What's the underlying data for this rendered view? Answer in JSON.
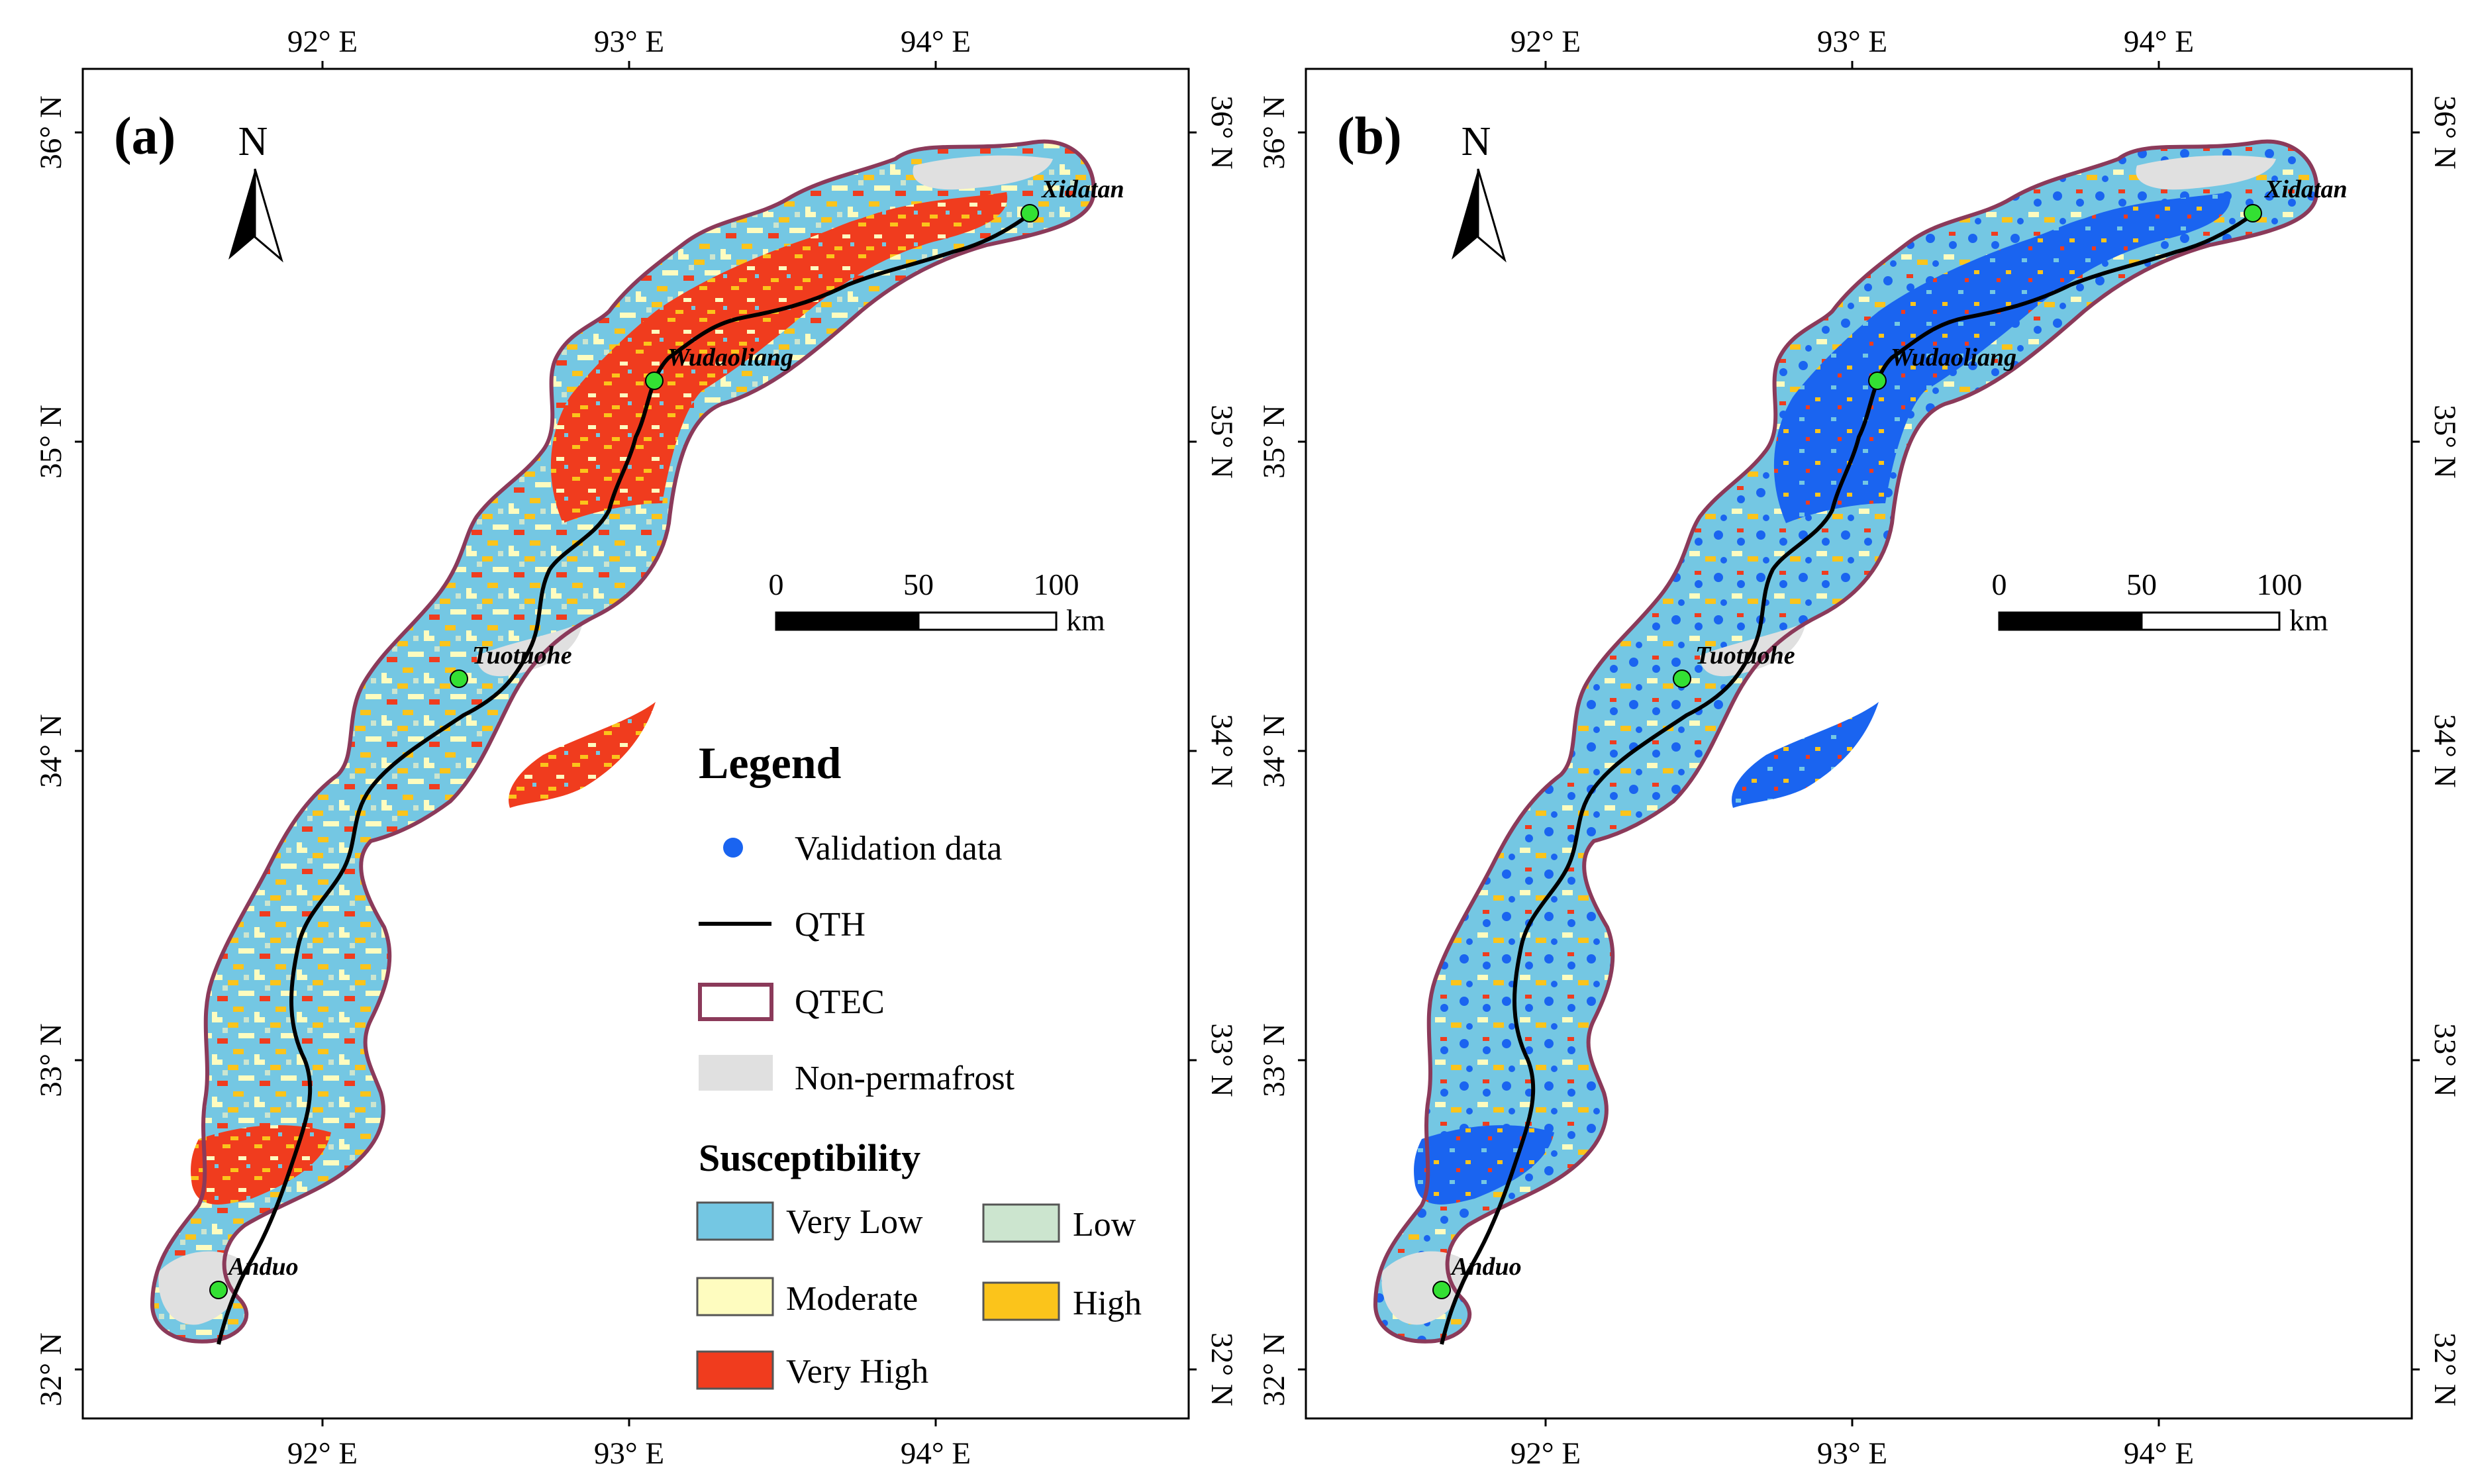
{
  "maps": [
    {
      "id": "a",
      "panel_label": "(a)",
      "lon_ticks": [
        "92° E",
        "93° E",
        "94° E"
      ],
      "lat_ticks": [
        "36° N",
        "35° N",
        "34° N",
        "33° N",
        "32° N"
      ],
      "north_arrow_label": "N",
      "scale_bar": {
        "labels": [
          "0",
          "50",
          "100"
        ],
        "unit": "km"
      },
      "cities": [
        "Xidatan",
        "Wudaoliang",
        "Tuotuohe",
        "Anduo"
      ]
    },
    {
      "id": "b",
      "panel_label": "(b)",
      "lon_ticks": [
        "92° E",
        "93° E",
        "94° E"
      ],
      "lat_ticks": [
        "36° N",
        "35° N",
        "34° N",
        "33° N",
        "32° N"
      ],
      "north_arrow_label": "N",
      "scale_bar": {
        "labels": [
          "0",
          "50",
          "100"
        ],
        "unit": "km"
      },
      "cities": [
        "Xidatan",
        "Wudaoliang",
        "Tuotuohe",
        "Anduo"
      ],
      "overlay": "Validation data"
    }
  ],
  "legend": {
    "title": "Legend",
    "items": [
      {
        "label": "Validation data",
        "symbol": "point",
        "color": "#1a64f0"
      },
      {
        "label": "QTH",
        "symbol": "line",
        "color": "#000000"
      },
      {
        "label": "QTEC",
        "symbol": "outline",
        "color": "#8b3a5a"
      },
      {
        "label": "Non-permafrost",
        "symbol": "fill",
        "color": "#e0e0e0"
      }
    ],
    "susceptibility_title": "Susceptibility",
    "classes": [
      {
        "label": "Very Low",
        "color": "#74c7e3"
      },
      {
        "label": "Low",
        "color": "#cce5cf"
      },
      {
        "label": "Moderate",
        "color": "#fefcbf"
      },
      {
        "label": "High",
        "color": "#fbc41b"
      },
      {
        "label": "Very High",
        "color": "#f03c1e"
      }
    ]
  }
}
